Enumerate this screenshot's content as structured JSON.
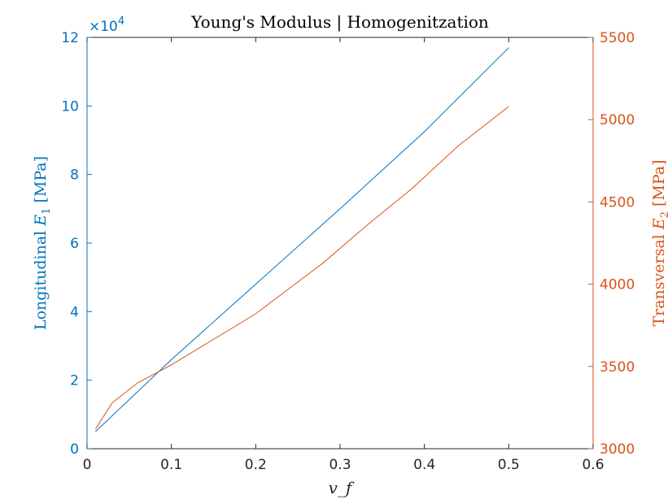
{
  "chart_data": {
    "type": "line",
    "title": "Young's Modulus | Homogenitzation",
    "xlabel": "v_f",
    "xlim": [
      0,
      0.6
    ],
    "xticks": [
      0,
      0.1,
      0.2,
      0.3,
      0.4,
      0.5,
      0.6
    ],
    "left_axis": {
      "label_prefix": "Longitudinal ",
      "label_var": "E",
      "label_sub": "1",
      "label_suffix": " [MPa]",
      "color": "#0072BD",
      "lim": [
        0,
        120000
      ],
      "ticks": [
        0,
        20000,
        40000,
        60000,
        80000,
        100000,
        120000
      ],
      "tick_labels": [
        "0",
        "2",
        "4",
        "6",
        "8",
        "10",
        "12"
      ],
      "exponent_base": "×10",
      "exponent_power": "4"
    },
    "right_axis": {
      "label_prefix": "Transversal ",
      "label_var": "E",
      "label_sub": "2",
      "label_suffix": " [MPa]",
      "color": "#D95319",
      "lim": [
        3000,
        5500
      ],
      "ticks": [
        3000,
        3500,
        4000,
        4500,
        5000,
        5500
      ],
      "tick_labels": [
        "3000",
        "3500",
        "4000",
        "4500",
        "5000",
        "5500"
      ]
    },
    "series": [
      {
        "axis": "left",
        "color": "#0072BD",
        "x": [
          0.01,
          0.1,
          0.2,
          0.3,
          0.4,
          0.5
        ],
        "y": [
          5000,
          26000,
          48000,
          70000,
          92500,
          117000
        ]
      },
      {
        "axis": "right",
        "color": "#D95319",
        "x": [
          0.01,
          0.03,
          0.06,
          0.1,
          0.2,
          0.28,
          0.33,
          0.385,
          0.44,
          0.5
        ],
        "y": [
          3120,
          3280,
          3400,
          3510,
          3820,
          4130,
          4350,
          4580,
          4840,
          5080
        ]
      }
    ],
    "grid": false,
    "legend": "none"
  }
}
